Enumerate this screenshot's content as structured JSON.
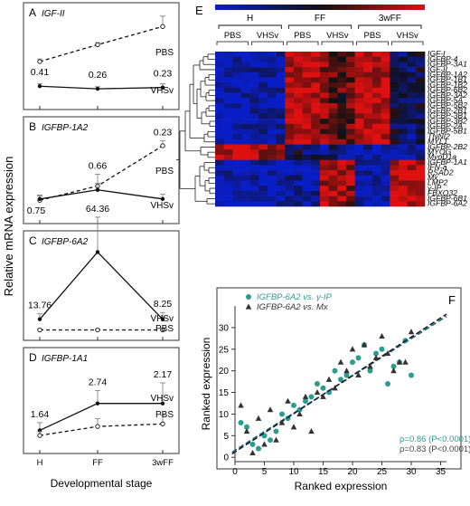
{
  "shared": {
    "ylabel": "Relative mRNA expression",
    "xlabel": "Developmental stage",
    "stages": [
      "H",
      "FF",
      "3wFF"
    ]
  },
  "chart_data": [
    {
      "panel": "A",
      "type": "line",
      "title": "IGF-II",
      "ylim": [
        0,
        3
      ],
      "series": [
        {
          "name": "PBS",
          "style": "dashed",
          "values": [
            1.5,
            2.15,
            2.85
          ],
          "errors": [
            0.1,
            0.08,
            0.4
          ]
        },
        {
          "name": "VHSv",
          "style": "solid",
          "values": [
            0.55,
            0.45,
            0.5
          ],
          "errors": [
            0.1,
            0.08,
            0.15
          ]
        }
      ],
      "labels": [
        "0.41",
        "0.26",
        "0.23"
      ]
    },
    {
      "panel": "B",
      "type": "line",
      "title": "IGFBP-1A2",
      "ylim": [
        0,
        3
      ],
      "series": [
        {
          "name": "PBS",
          "style": "dashed",
          "values": [
            0.55,
            1.1,
            2.65
          ],
          "errors": [
            0.2,
            0.45,
            0.2
          ]
        },
        {
          "name": "VHSv",
          "style": "solid",
          "values": [
            0.6,
            0.95,
            0.6
          ],
          "errors": [
            0.12,
            0.25,
            0.18
          ]
        }
      ],
      "labels": [
        "0.75",
        "0.66",
        "0.23"
      ]
    },
    {
      "panel": "C",
      "type": "line",
      "title": "IGFBP-6A2",
      "ylim": [
        0,
        3
      ],
      "series": [
        {
          "name": "VHSv",
          "style": "solid",
          "values": [
            0.45,
            2.95,
            0.45
          ],
          "errors": [
            0.2,
            1.3,
            0.25
          ]
        },
        {
          "name": "PBS",
          "style": "dashed",
          "values": [
            0.05,
            0.05,
            0.05
          ],
          "errors": [
            0.03,
            0.03,
            0.03
          ]
        }
      ],
      "labels": [
        "13.76",
        "64.36",
        "8.25"
      ]
    },
    {
      "panel": "D",
      "type": "line",
      "title": "IGFBP-1A1",
      "ylim": [
        0,
        3
      ],
      "series": [
        {
          "name": "VHSv",
          "style": "solid",
          "values": [
            0.55,
            1.6,
            1.6
          ],
          "errors": [
            0.3,
            0.5,
            0.8
          ]
        },
        {
          "name": "PBS",
          "style": "dashed",
          "values": [
            0.35,
            0.7,
            0.8
          ],
          "errors": [
            0.15,
            0.3,
            0.35
          ]
        }
      ],
      "labels": [
        "1.64",
        "2.74",
        "2.17"
      ]
    },
    {
      "panel": "E",
      "type": "heatmap",
      "group_labels": [
        "H",
        "FF",
        "3wFF"
      ],
      "sub_labels": [
        "PBS",
        "VHSv",
        "PBS",
        "VHSv",
        "PBS",
        "VHSv"
      ],
      "rows": [
        "IGF-I",
        "IGFBP-4",
        "IGFBP-3A1",
        "IGF-II",
        "IGFBP-1A2",
        "IGFBP-1B1",
        "IGFBP-1B2",
        "IGFBP-6B2",
        "IGFBP-3A2",
        "IGFBP-5A",
        "IGFBP-5B2",
        "IGFBP-2B1",
        "IGFBP-3B1",
        "IGFBP-3B2",
        "IGFBP-2A",
        "IGFBP-5B1",
        "TNNI2",
        "MYL1",
        "IGFBP-2B2",
        "MYOG",
        "MyoD1a",
        "IGFBP-1A1",
        "IFN-a",
        "RSAD2",
        "Mx",
        "LMP2",
        "γ-IP",
        "FBXO32",
        "IGFBP-6B1",
        "IGFBP-6A2"
      ],
      "row_profiles": [
        "A",
        "A",
        "A",
        "A",
        "A",
        "A",
        "A",
        "A",
        "A",
        "A",
        "A",
        "A",
        "A",
        "A",
        "A",
        "A",
        "A",
        "A",
        "B",
        "B",
        "B",
        "C",
        "C",
        "C",
        "C",
        "C",
        "C",
        "C",
        "C",
        "C"
      ],
      "colors": {
        "low": "#0a1ec8",
        "mid": "#111111",
        "high": "#e01010"
      }
    },
    {
      "panel": "F",
      "type": "scatter",
      "xlabel": "Ranked expression",
      "ylabel": "Ranked expression",
      "xlim": [
        0,
        36
      ],
      "ylim": [
        -1,
        35
      ],
      "xticks": [
        0,
        5,
        10,
        15,
        20,
        25,
        30,
        35
      ],
      "yticks": [
        0,
        5,
        10,
        15,
        20,
        25,
        30
      ],
      "series": [
        {
          "name": "IGFBP-6A2 vs. γ-IP",
          "marker": "circle",
          "color": "#2a9d8f",
          "points": [
            [
              1,
              8
            ],
            [
              2,
              7
            ],
            [
              3,
              3
            ],
            [
              4,
              2
            ],
            [
              5,
              5
            ],
            [
              6,
              4
            ],
            [
              7,
              6
            ],
            [
              8,
              10
            ],
            [
              9,
              9
            ],
            [
              10,
              12
            ],
            [
              11,
              11
            ],
            [
              12,
              13
            ],
            [
              13,
              14
            ],
            [
              14,
              17
            ],
            [
              15,
              16
            ],
            [
              16,
              15
            ],
            [
              17,
              20
            ],
            [
              18,
              18
            ],
            [
              19,
              19
            ],
            [
              20,
              22
            ],
            [
              21,
              23
            ],
            [
              22,
              26
            ],
            [
              23,
              20
            ],
            [
              24,
              24
            ],
            [
              25,
              25
            ],
            [
              26,
              17
            ],
            [
              27,
              21
            ],
            [
              28,
              22
            ],
            [
              29,
              27
            ],
            [
              30,
              19
            ]
          ],
          "fit": [
            [
              -0.5,
              1.2
            ],
            [
              36,
              32.6
            ]
          ],
          "stat": "ρ=0.86 (P<0.0001)"
        },
        {
          "name": "IGFBP-6A2 vs. Mx",
          "marker": "triangle",
          "color": "#333333",
          "points": [
            [
              1,
              12
            ],
            [
              2,
              6
            ],
            [
              3,
              1
            ],
            [
              4,
              9
            ],
            [
              5,
              3
            ],
            [
              6,
              11
            ],
            [
              7,
              4
            ],
            [
              8,
              8
            ],
            [
              9,
              13
            ],
            [
              10,
              7
            ],
            [
              11,
              10
            ],
            [
              12,
              14
            ],
            [
              13,
              6
            ],
            [
              14,
              15
            ],
            [
              15,
              14
            ],
            [
              16,
              18
            ],
            [
              17,
              16
            ],
            [
              18,
              22
            ],
            [
              19,
              20
            ],
            [
              20,
              25
            ],
            [
              21,
              19
            ],
            [
              22,
              26
            ],
            [
              23,
              21
            ],
            [
              24,
              23
            ],
            [
              25,
              28
            ],
            [
              26,
              24
            ],
            [
              27,
              20
            ],
            [
              28,
              22
            ],
            [
              29,
              22
            ],
            [
              30,
              29
            ]
          ],
          "fit": [
            [
              -0.5,
              0.8
            ],
            [
              36,
              33.1
            ]
          ],
          "stat": "ρ=0.83 (P<0.0001)"
        }
      ]
    }
  ]
}
